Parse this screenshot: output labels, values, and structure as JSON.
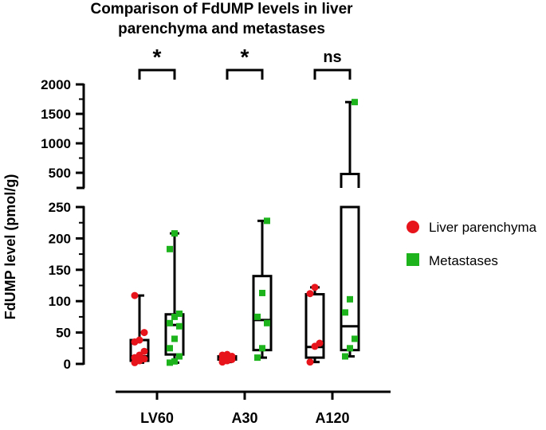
{
  "chart_data": {
    "type": "box",
    "title_lines": [
      "Comparison of FdUMP levels in liver",
      "parenchyma and metastases"
    ],
    "ylabel": "FdUMP level (pmol/g)",
    "categories": [
      "LV60",
      "A30",
      "A120"
    ],
    "y_axis": {
      "broken": true,
      "lower_range": [
        0,
        250
      ],
      "upper_range": [
        250,
        2000
      ],
      "lower_ticks": [
        "0",
        "50",
        "100",
        "150",
        "200",
        "250"
      ],
      "upper_ticks": [
        "500",
        "1000",
        "1500",
        "2000"
      ]
    },
    "significance": [
      "*",
      "*",
      "ns"
    ],
    "series": [
      {
        "name": "Liver parenchyma",
        "color": "#e8141c",
        "marker": "circle",
        "boxes": [
          {
            "min": 2,
            "q1": 5,
            "median": 12,
            "q3": 38,
            "max": 109
          },
          {
            "min": 3,
            "q1": 7,
            "median": 10,
            "q3": 12,
            "max": 15
          },
          {
            "min": 3,
            "q1": 10,
            "median": 27,
            "q3": 111,
            "max": 122
          }
        ],
        "points": [
          [
            2,
            5,
            8,
            10,
            14,
            20,
            35,
            38,
            50,
            109
          ],
          [
            3,
            5,
            7,
            8,
            10,
            12,
            14,
            15
          ],
          [
            3,
            28,
            33,
            112,
            122
          ]
        ]
      },
      {
        "name": "Metastases",
        "color": "#1cb31c",
        "marker": "square",
        "boxes": [
          {
            "min": 2,
            "q1": 15,
            "median": 62,
            "q3": 79,
            "max": 208
          },
          {
            "min": 10,
            "q1": 22,
            "median": 70,
            "q3": 140,
            "max": 228
          },
          {
            "min": 12,
            "q1": 22,
            "median": 60,
            "q3": 480,
            "max": 1700
          }
        ],
        "points": [
          [
            2,
            4,
            12,
            25,
            40,
            60,
            65,
            75,
            80,
            183,
            208
          ],
          [
            10,
            25,
            65,
            75,
            113,
            228
          ],
          [
            12,
            25,
            40,
            82,
            103,
            1700
          ]
        ]
      }
    ],
    "legend": {
      "position": "right",
      "items": [
        "Liver parenchyma",
        "Metastases"
      ]
    }
  }
}
